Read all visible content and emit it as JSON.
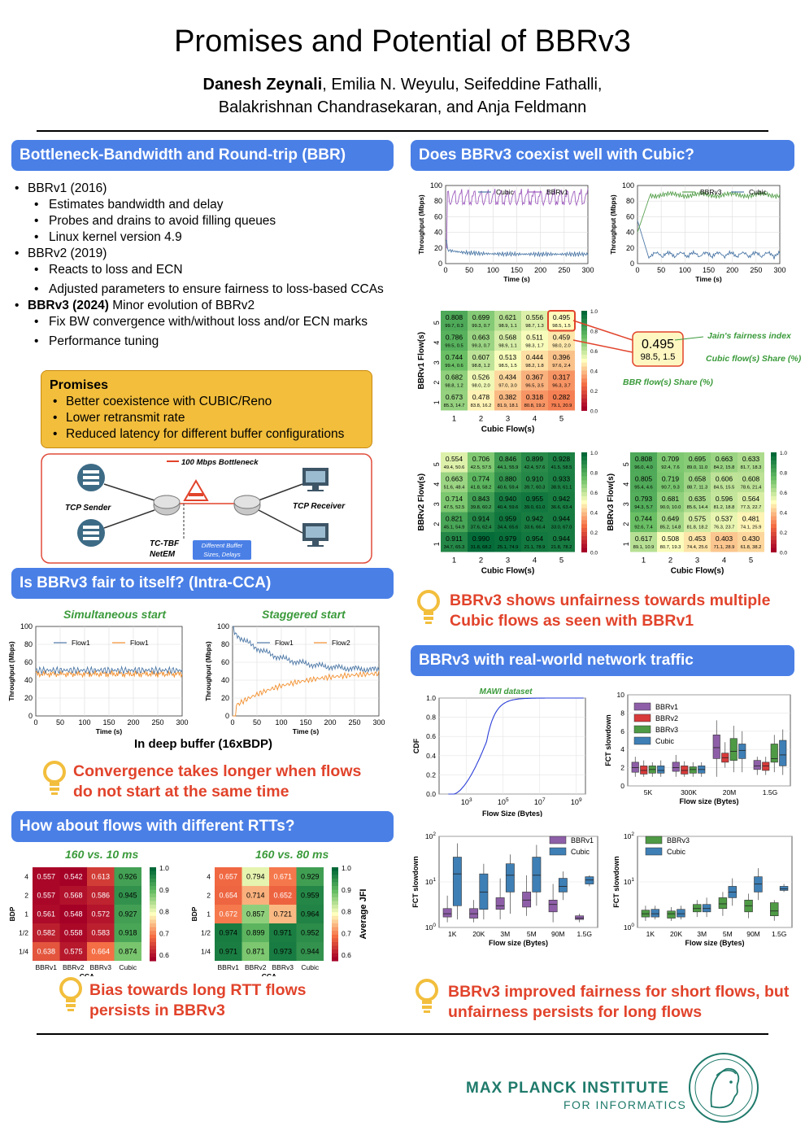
{
  "header": {
    "title": "Promises and Potential of BBRv3",
    "author_bold": "Danesh Zeynali",
    "authors_line1_rest": ", Emilia N. Weyulu, Seifeddine Fathalli,",
    "authors_line2": "Balakrishnan Chandrasekaran, and Anja Feldmann"
  },
  "bbr": {
    "banner": "Bottleneck-Bandwidth and Round-trip (BBR)",
    "v1": "BBRv1 (2016)",
    "v1_items": [
      "Estimates bandwidth and delay",
      "Probes and drains to avoid filling queues",
      "Linux kernel version 4.9"
    ],
    "v2": "BBRv2 (2019)",
    "v2_items": [
      "Reacts to loss and ECN",
      "Adjusted parameters to ensure fairness to loss-based CCAs"
    ],
    "v3_bold": "BBRv3 (2024)",
    "v3_rest": " Minor evolution of BBRv2",
    "v3_items": [
      "Fix BW convergence with/without loss and/or ECN marks",
      "Performance tuning"
    ],
    "promises_title": "Promises",
    "promises_items": [
      "Better coexistence with CUBIC/Reno",
      "Lower retransmit rate",
      "Reduced latency for different buffer configurations"
    ],
    "diagram": {
      "bottleneck": "100 Mbps Bottleneck",
      "sender": "TCP Sender",
      "receiver": "TCP Receiver",
      "tbf": "TC-TBF",
      "netem": "NetEM",
      "buffer_note": "Different Buffer Sizes, Delays"
    }
  },
  "intra": {
    "banner": "Is BBRv3 fair to itself? (Intra-CCA)",
    "left_title": "Simultaneous start",
    "right_title": "Staggered start",
    "ylabel": "Throughput (Mbps)",
    "xlabel": "Time (s)",
    "left_legend": [
      "Flow1",
      "Flow1"
    ],
    "right_legend": [
      "Flow1",
      "Flow2"
    ],
    "caption": "In deep buffer (16xBDP)",
    "takeaway": "Convergence takes longer when flows do not start at the same time"
  },
  "rtt": {
    "banner": "How about flows with different RTTs?",
    "left_title": "160 vs. 10 ms",
    "right_title": "160 vs. 80 ms",
    "ylabel": "BDP",
    "xlabel": "CCA",
    "rows": [
      "4",
      "2",
      "1",
      "1/2",
      "1/4"
    ],
    "cols": [
      "BBRv1",
      "BBRv2",
      "BBRv3",
      "Cubic"
    ],
    "left": [
      [
        "0.557",
        "0.542",
        "0.613",
        "0.926"
      ],
      [
        "0.557",
        "0.568",
        "0.586",
        "0.945"
      ],
      [
        "0.561",
        "0.548",
        "0.572",
        "0.927"
      ],
      [
        "0.582",
        "0.558",
        "0.583",
        "0.918"
      ],
      [
        "0.638",
        "0.575",
        "0.664",
        "0.874"
      ]
    ],
    "right": [
      [
        "0.657",
        "0.794",
        "0.671",
        "0.929"
      ],
      [
        "0.654",
        "0.714",
        "0.652",
        "0.959"
      ],
      [
        "0.672",
        "0.857",
        "0.721",
        "0.964"
      ],
      [
        "0.974",
        "0.899",
        "0.971",
        "0.952"
      ],
      [
        "0.971",
        "0.871",
        "0.973",
        "0.944"
      ]
    ],
    "cbar_ticks": [
      "1.0",
      "0.9",
      "0.8",
      "0.7",
      "0.6"
    ],
    "cbar_label": "Average JFI",
    "takeaway": "Bias towards long RTT flows persists in BBRv3"
  },
  "cubic": {
    "banner": "Does BBRv3 coexist well with Cubic?",
    "left_legend": [
      "Cubic",
      "BBRv1"
    ],
    "right_legend": [
      "BBRv3",
      "Cubic"
    ],
    "ylabel": "Throughput (Mbps)",
    "xlabel": "Time (s)",
    "heat_xlabel": "Cubic Flow(s)",
    "bbrv1_ylabel": "BBRv1 Flow(s)",
    "bbrv2_ylabel": "BBRv2 Flow(s)",
    "bbrv3_ylabel": "BBRv3 Flow(s)",
    "callout_value": "0.495",
    "callout_share": "98.5, 1.5",
    "jain_label": "Jain's fairness index",
    "cubic_share_label": "Cubic flow(s) Share (%)",
    "bbr_share_label": "BBR flow(s) Share (%)",
    "cbar_ticks": [
      "1.0",
      "0.8",
      "0.6",
      "0.4",
      "0.2",
      "0.0"
    ],
    "takeaway": "BBRv3 shows unfairness towards multiple Cubic flows as seen with BBRv1",
    "bbrv1": [
      [
        [
          "0.808",
          "99.7, 0.3"
        ],
        [
          "0.699",
          "99.3, 0.7"
        ],
        [
          "0.621",
          "98.9, 1.1"
        ],
        [
          "0.556",
          "98.7, 1.3"
        ],
        [
          "0.495",
          "98.5, 1.5"
        ]
      ],
      [
        [
          "0.786",
          "99.5, 0.5"
        ],
        [
          "0.663",
          "99.3, 0.7"
        ],
        [
          "0.568",
          "98.9, 1.1"
        ],
        [
          "0.511",
          "98.3, 1.7"
        ],
        [
          "0.459",
          "98.0, 2.0"
        ]
      ],
      [
        [
          "0.744",
          "99.4, 0.6"
        ],
        [
          "0.607",
          "98.8, 1.2"
        ],
        [
          "0.513",
          "98.5, 1.5"
        ],
        [
          "0.444",
          "98.2, 1.8"
        ],
        [
          "0.396",
          "97.6, 2.4"
        ]
      ],
      [
        [
          "0.682",
          "98.8, 1.2"
        ],
        [
          "0.526",
          "98.0, 2.0"
        ],
        [
          "0.434",
          "97.0, 3.0"
        ],
        [
          "0.367",
          "96.5, 3.5"
        ],
        [
          "0.317",
          "96.3, 3.7"
        ]
      ],
      [
        [
          "0.673",
          "85.3, 14.7"
        ],
        [
          "0.478",
          "83.8, 16.2"
        ],
        [
          "0.382",
          "81.9, 18.1"
        ],
        [
          "0.318",
          "80.8, 19.2"
        ],
        [
          "0.282",
          "79.1, 20.9"
        ]
      ]
    ],
    "bbrv2": [
      [
        [
          "0.554",
          "49.4, 50.6"
        ],
        [
          "0.706",
          "42.5, 57.5"
        ],
        [
          "0.846",
          "44.1, 55.9"
        ],
        [
          "0.899",
          "42.4, 57.6"
        ],
        [
          "0.928",
          "41.5, 58.5"
        ]
      ],
      [
        [
          "0.663",
          "51.6, 48.4"
        ],
        [
          "0.774",
          "41.8, 58.2"
        ],
        [
          "0.880",
          "40.6, 59.4"
        ],
        [
          "0.910",
          "39.7, 60.3"
        ],
        [
          "0.933",
          "38.9, 61.1"
        ]
      ],
      [
        [
          "0.714",
          "47.5, 52.5"
        ],
        [
          "0.843",
          "39.8, 60.2"
        ],
        [
          "0.940",
          "40.4, 59.6"
        ],
        [
          "0.955",
          "39.0, 61.0"
        ],
        [
          "0.942",
          "36.6, 63.4"
        ]
      ],
      [
        [
          "0.821",
          "45.1, 54.9"
        ],
        [
          "0.914",
          "37.6, 62.4"
        ],
        [
          "0.959",
          "34.4, 65.6"
        ],
        [
          "0.942",
          "33.6, 66.4"
        ],
        [
          "0.944",
          "33.0, 67.0"
        ]
      ],
      [
        [
          "0.911",
          "34.7, 65.3"
        ],
        [
          "0.990",
          "31.8, 68.2"
        ],
        [
          "0.979",
          "25.1, 74.9"
        ],
        [
          "0.954",
          "21.1, 78.9"
        ],
        [
          "0.944",
          "21.8, 78.2"
        ]
      ]
    ],
    "bbrv3": [
      [
        [
          "0.808",
          "96.0, 4.0"
        ],
        [
          "0.709",
          "92.4, 7.6"
        ],
        [
          "0.695",
          "89.0, 11.0"
        ],
        [
          "0.663",
          "84.2, 15.8"
        ],
        [
          "0.633",
          "81.7, 18.3"
        ]
      ],
      [
        [
          "0.805",
          "95.4, 4.6"
        ],
        [
          "0.719",
          "90.7, 9.3"
        ],
        [
          "0.658",
          "88.7, 11.3"
        ],
        [
          "0.606",
          "84.5, 15.5"
        ],
        [
          "0.608",
          "78.6, 21.4"
        ]
      ],
      [
        [
          "0.793",
          "94.3, 5.7"
        ],
        [
          "0.681",
          "90.0, 10.0"
        ],
        [
          "0.635",
          "85.6, 14.4"
        ],
        [
          "0.596",
          "81.2, 18.8"
        ],
        [
          "0.564",
          "77.3, 22.7"
        ]
      ],
      [
        [
          "0.744",
          "92.6, 7.4"
        ],
        [
          "0.649",
          "85.2, 14.8"
        ],
        [
          "0.575",
          "81.8, 18.2"
        ],
        [
          "0.537",
          "76.3, 23.7"
        ],
        [
          "0.481",
          "74.1, 25.9"
        ]
      ],
      [
        [
          "0.617",
          "89.1, 10.9"
        ],
        [
          "0.508",
          "80.7, 19.3"
        ],
        [
          "0.453",
          "74.4, 25.6"
        ],
        [
          "0.403",
          "71.1, 28.9"
        ],
        [
          "0.430",
          "61.8, 38.2"
        ]
      ]
    ]
  },
  "real": {
    "banner": "BBRv3 with real-world network traffic",
    "mawi": "MAWI dataset",
    "cdf_ylabel": "CDF",
    "cdf_xlabel": "Flow Size (Bytes)",
    "fct_ylabel": "FCT slowdown",
    "fct_xlabel": "Flow size (Bytes)",
    "top_legend": [
      "BBRv1",
      "BBRv2",
      "BBRv3",
      "Cubic"
    ],
    "top_cats": [
      "5K",
      "300K",
      "20M",
      "1.5G"
    ],
    "bottom_cats": [
      "1K",
      "20K",
      "3M",
      "5M",
      "90M",
      "1.5G"
    ],
    "bl_legend": [
      "BBRv1",
      "Cubic"
    ],
    "br_legend": [
      "BBRv3",
      "Cubic"
    ],
    "takeaway": "BBRv3 improved fairness for short flows, but unfairness persists for long flows"
  },
  "footer": {
    "inst1": "MAX PLANCK INSTITUTE",
    "inst2": "FOR INFORMATICS"
  },
  "colors": {
    "banner": "#4a7fe6",
    "accent": "#e1432b",
    "green": "#3a9a3a"
  }
}
